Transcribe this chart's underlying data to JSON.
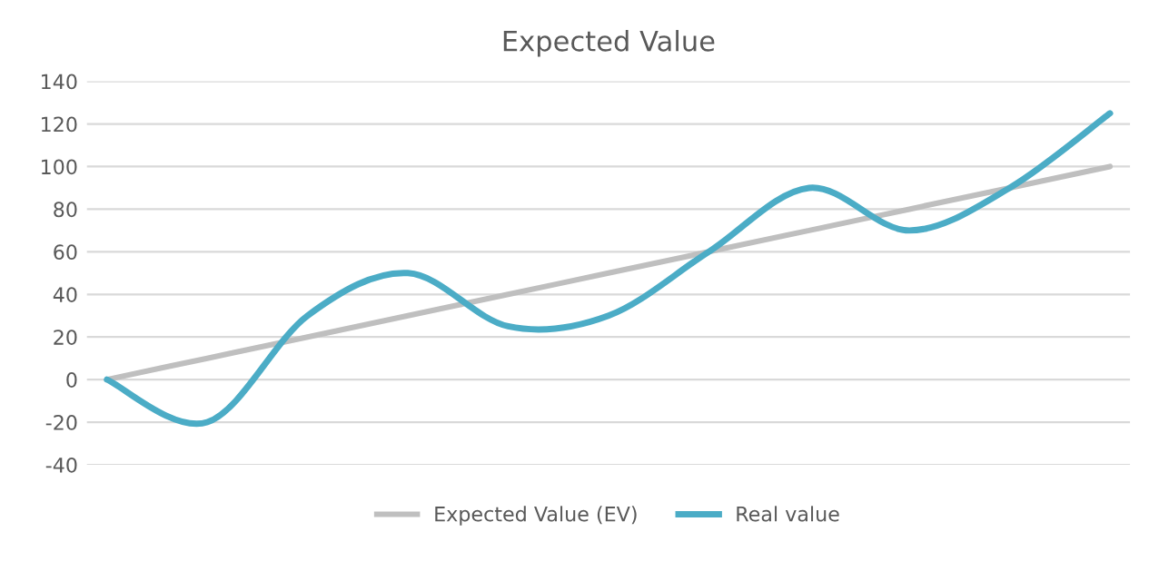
{
  "chart_data": {
    "type": "line",
    "title": "Expected Value",
    "categories": [
      null,
      null,
      null,
      null,
      null,
      null,
      null,
      null,
      null,
      null,
      null
    ],
    "series": [
      {
        "name": "Expected Value (EV)",
        "color": "#bfbfbf",
        "values": [
          0,
          10,
          20,
          30,
          40,
          50,
          60,
          70,
          80,
          90,
          100
        ]
      },
      {
        "name": "Real value",
        "color": "#4bacc6",
        "values": [
          0,
          -20,
          30,
          50,
          25,
          30,
          60,
          90,
          70,
          90,
          125
        ]
      }
    ],
    "ylim": [
      -40,
      140
    ],
    "yticks": [
      -40,
      -20,
      0,
      20,
      40,
      60,
      80,
      100,
      120,
      140
    ],
    "grid": "y",
    "legend": "bottom",
    "marker": "none",
    "line_style": "solid"
  }
}
